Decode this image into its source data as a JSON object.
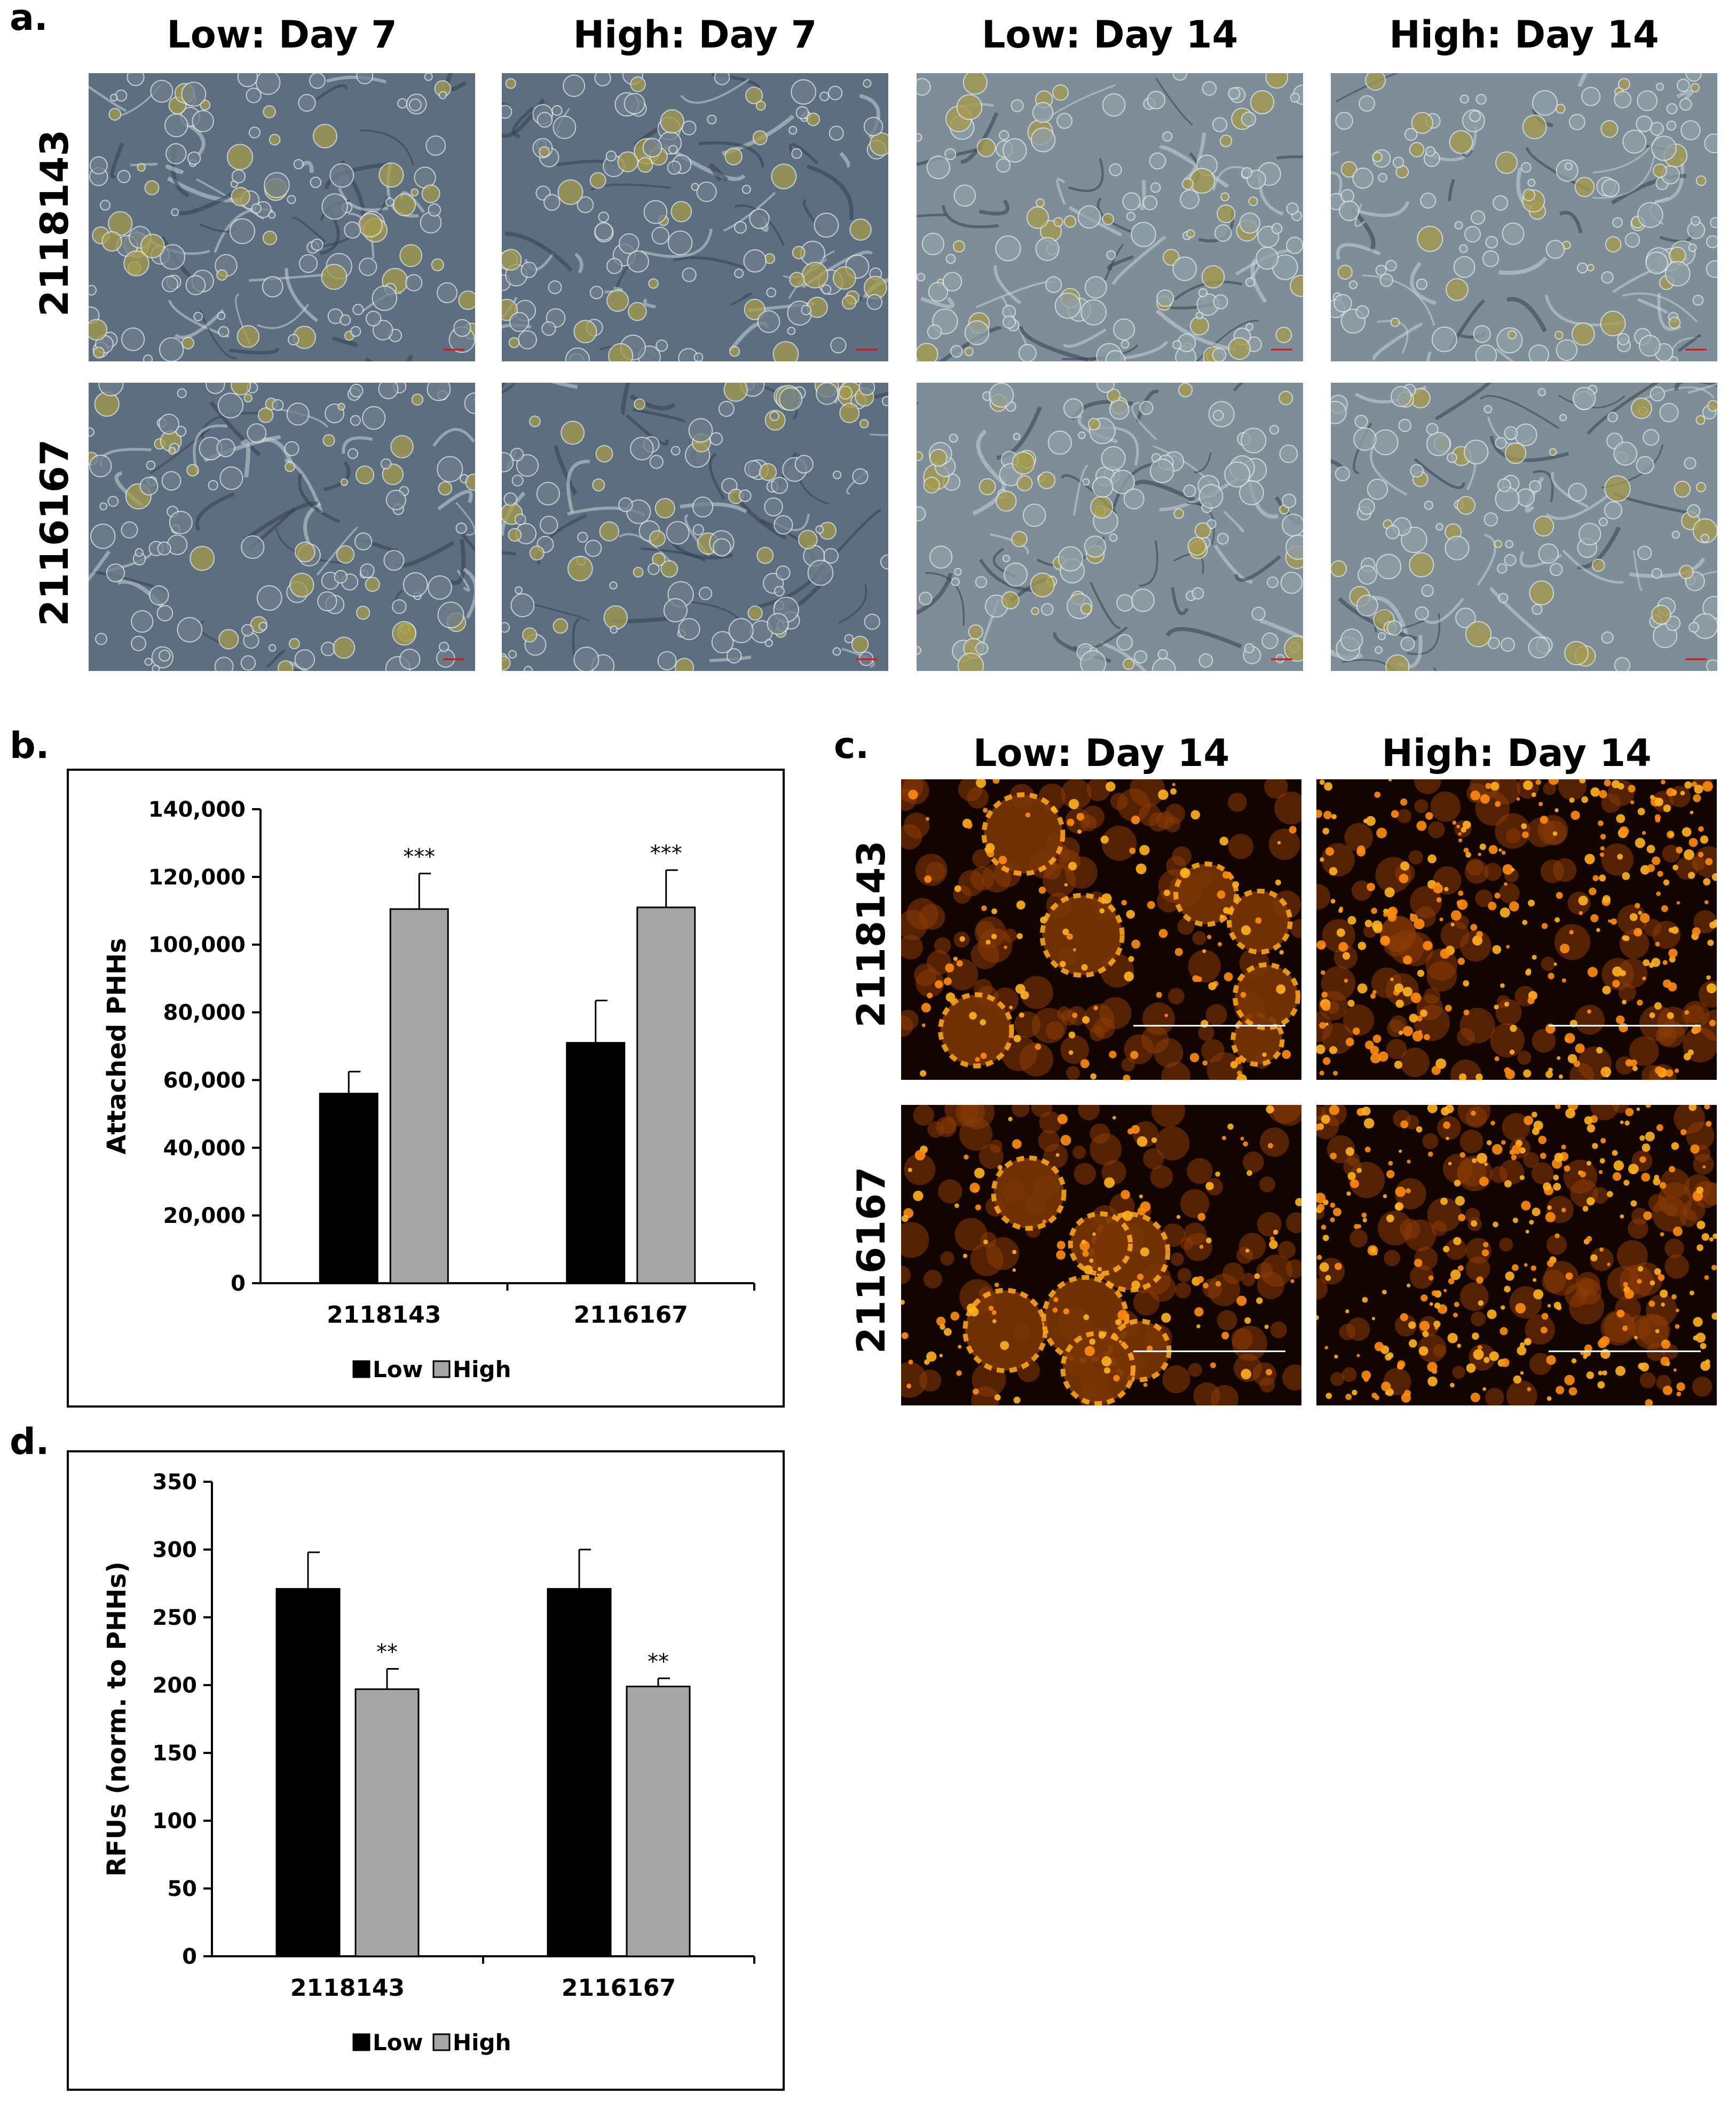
{
  "panel_a": {
    "label": "a.",
    "columns": [
      "Low: Day 7",
      "High: Day 7",
      "Low: Day 14",
      "High: Day 14"
    ],
    "rows": [
      "2118143",
      "2116167"
    ]
  },
  "panel_b": {
    "label": "b."
  },
  "panel_c": {
    "label": "c.",
    "columns": [
      "Low: Day 14",
      "High: Day 14"
    ],
    "rows": [
      "2118143",
      "2116167"
    ]
  },
  "panel_d": {
    "label": "d."
  },
  "colors": {
    "low": "#000000",
    "high": "#a6a6a6",
    "phase_contrast": "#5d6e80",
    "fluorescence": "#ff9a1a"
  },
  "chart_data": [
    {
      "id": "chart-b",
      "type": "bar",
      "title": "",
      "xlabel": "",
      "ylabel": "Attached PHHs",
      "categories": [
        "2118143",
        "2116167"
      ],
      "series": [
        {
          "name": "Low",
          "values": [
            56000,
            71000
          ],
          "errors": [
            6500,
            12500
          ]
        },
        {
          "name": "High",
          "values": [
            110500,
            111000
          ],
          "errors": [
            10500,
            11000
          ]
        }
      ],
      "significance": [
        {
          "category": "2118143",
          "series": "High",
          "label": "***"
        },
        {
          "category": "2116167",
          "series": "High",
          "label": "***"
        }
      ],
      "ylim": [
        0,
        140000
      ],
      "yticks": [
        "0",
        "20,000",
        "40,000",
        "60,000",
        "80,000",
        "100,000",
        "120,000",
        "140,000"
      ],
      "legend": [
        "Low",
        "High"
      ],
      "legend_position": "bottom",
      "grid": false
    },
    {
      "id": "chart-d",
      "type": "bar",
      "title": "",
      "xlabel": "",
      "ylabel": "RFUs (norm. to PHHs)",
      "categories": [
        "2118143",
        "2116167"
      ],
      "series": [
        {
          "name": "Low",
          "values": [
            271,
            271
          ],
          "errors": [
            27,
            29
          ]
        },
        {
          "name": "High",
          "values": [
            197,
            199
          ],
          "errors": [
            15,
            6
          ]
        }
      ],
      "significance": [
        {
          "category": "2118143",
          "series": "High",
          "label": "**"
        },
        {
          "category": "2116167",
          "series": "High",
          "label": "**"
        }
      ],
      "ylim": [
        0,
        350
      ],
      "yticks": [
        "0",
        "50",
        "100",
        "150",
        "200",
        "250",
        "300",
        "350"
      ],
      "legend": [
        "Low",
        "High"
      ],
      "legend_position": "bottom",
      "grid": false
    }
  ]
}
